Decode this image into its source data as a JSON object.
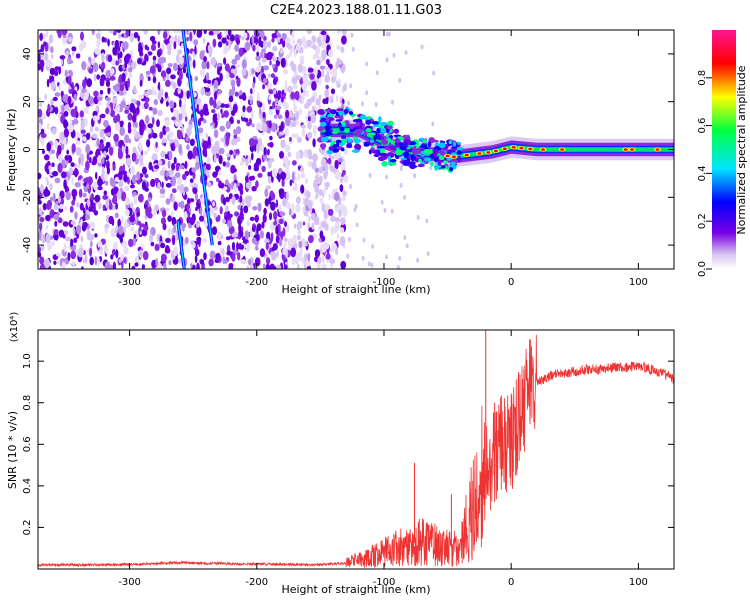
{
  "title": "C2E4.2023.188.01.11.G03",
  "chart_data": [
    {
      "type": "heatmap",
      "xlabel": "Height of straight line (km)",
      "ylabel": "Frequency (Hz)",
      "xlim": [
        -372,
        128
      ],
      "ylim": [
        -50,
        50
      ],
      "xticks": [
        -300,
        -200,
        -100,
        0,
        100
      ],
      "yticks": [
        -40,
        -20,
        0,
        20,
        40
      ],
      "colorbar": {
        "label": "Normalized spectral amplitude",
        "range": [
          0.0,
          1.0
        ],
        "ticks": [
          0.0,
          0.2,
          0.4,
          0.6,
          0.8
        ],
        "colors": [
          "#f4ecfa",
          "#7a00e6",
          "#0000ff",
          "#00e5ff",
          "#00ff40",
          "#ffff00",
          "#ff0000",
          "#ff1493"
        ]
      },
      "features": {
        "noise_region_x": [
          -372,
          -130
        ],
        "doppler_line": [
          {
            "x": -258,
            "y": 50
          },
          {
            "x": -235,
            "y": -40
          }
        ],
        "doppler_line_lower": [
          {
            "x": -262,
            "y": -30
          },
          {
            "x": -257,
            "y": -50
          }
        ],
        "carrier_ridge": [
          {
            "x": -150,
            "y": 8
          },
          {
            "x": -120,
            "y": 8
          },
          {
            "x": -100,
            "y": 3
          },
          {
            "x": -80,
            "y": -1
          },
          {
            "x": -60,
            "y": -2
          },
          {
            "x": -45,
            "y": -3
          },
          {
            "x": -30,
            "y": -2
          },
          {
            "x": -15,
            "y": -1
          },
          {
            "x": 0,
            "y": 1
          },
          {
            "x": 20,
            "y": 0
          },
          {
            "x": 60,
            "y": 0
          },
          {
            "x": 128,
            "y": 0
          }
        ]
      }
    },
    {
      "type": "line",
      "xlabel": "Height of straight line (km)",
      "ylabel": "SNR (10 * v/v)",
      "y_multiplier": "(x10⁴)",
      "xlim": [
        -372,
        128
      ],
      "ylim": [
        0,
        1.15
      ],
      "xticks": [
        -300,
        -200,
        -100,
        0,
        100
      ],
      "yticks": [
        0.2,
        0.4,
        0.6,
        0.8,
        1.0
      ],
      "series": [
        {
          "color": "#ee3333",
          "x": [
            -372,
            -330,
            -300,
            -260,
            -220,
            -180,
            -150,
            -130,
            -115,
            -100,
            -90,
            -80,
            -70,
            -60,
            -50,
            -40,
            -35,
            -30,
            -25,
            -20,
            -15,
            -10,
            -5,
            0,
            5,
            10,
            15,
            20,
            25,
            30,
            40,
            50,
            60,
            70,
            80,
            90,
            100,
            110,
            120,
            128
          ],
          "y": [
            0.02,
            0.02,
            0.022,
            0.03,
            0.025,
            0.022,
            0.02,
            0.03,
            0.05,
            0.08,
            0.1,
            0.12,
            0.13,
            0.12,
            0.1,
            0.12,
            0.2,
            0.3,
            0.38,
            0.5,
            0.52,
            0.6,
            0.58,
            0.62,
            0.68,
            0.8,
            0.88,
            0.9,
            0.91,
            0.93,
            0.94,
            0.95,
            0.96,
            0.96,
            0.97,
            0.97,
            0.98,
            0.96,
            0.94,
            0.91
          ]
        }
      ],
      "spikes": [
        {
          "x": -76,
          "y": 0.51
        },
        {
          "x": -47,
          "y": 0.36
        },
        {
          "x": -20,
          "y": 1.15
        },
        {
          "x": -13,
          "y": 0.8
        },
        {
          "x": 10,
          "y": 0.96
        }
      ]
    }
  ]
}
